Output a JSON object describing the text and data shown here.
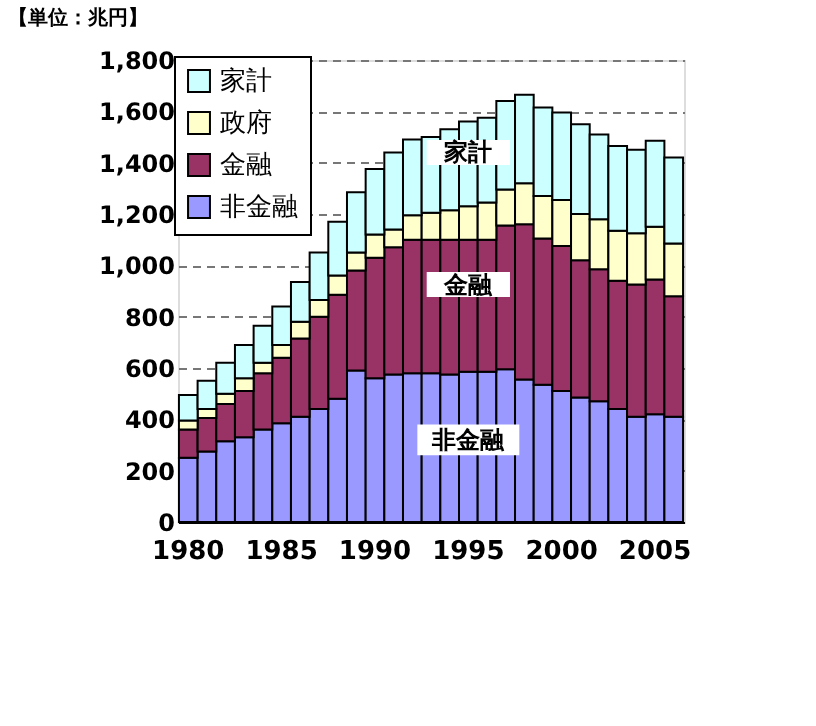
{
  "chart_data": {
    "type": "bar",
    "stacked": true,
    "title": "【単位：兆円】",
    "categories": [
      "1980",
      null,
      null,
      null,
      null,
      "1985",
      null,
      null,
      null,
      null,
      "1990",
      null,
      null,
      null,
      null,
      "1995",
      null,
      null,
      null,
      null,
      "2000",
      null,
      null,
      null,
      null,
      "2005",
      null
    ],
    "series": [
      {
        "name": "非金融",
        "color": "#9999ff",
        "values": [
          250,
          275,
          315,
          330,
          360,
          385,
          410,
          440,
          480,
          590,
          560,
          575,
          580,
          580,
          575,
          585,
          585,
          595,
          555,
          535,
          510,
          485,
          470,
          440,
          410,
          420,
          410
        ]
      },
      {
        "name": "金融",
        "color": "#993366",
        "values": [
          110,
          130,
          145,
          180,
          220,
          255,
          305,
          360,
          405,
          390,
          470,
          495,
          520,
          520,
          525,
          515,
          515,
          560,
          605,
          570,
          565,
          535,
          515,
          500,
          515,
          525,
          470
        ]
      },
      {
        "name": "政府",
        "color": "#ffffcc",
        "values": [
          35,
          35,
          40,
          50,
          40,
          50,
          65,
          65,
          75,
          70,
          90,
          70,
          95,
          105,
          115,
          130,
          145,
          140,
          160,
          165,
          180,
          180,
          195,
          195,
          200,
          205,
          205
        ]
      },
      {
        "name": "家計",
        "color": "#ccffff",
        "values": [
          100,
          110,
          120,
          130,
          145,
          150,
          155,
          185,
          210,
          235,
          255,
          300,
          295,
          295,
          315,
          330,
          330,
          345,
          345,
          345,
          340,
          350,
          330,
          330,
          325,
          335,
          335
        ]
      }
    ],
    "ylim": [
      0,
      1800
    ],
    "yticks": [
      {
        "value": 0,
        "label": "0"
      },
      {
        "value": 200,
        "label": "200"
      },
      {
        "value": 400,
        "label": "400"
      },
      {
        "value": 600,
        "label": "600"
      },
      {
        "value": 800,
        "label": "800"
      },
      {
        "value": 1000,
        "label": "1,000"
      },
      {
        "value": 1200,
        "label": "1,200"
      },
      {
        "value": 1400,
        "label": "1,400"
      },
      {
        "value": 1600,
        "label": "1,600"
      },
      {
        "value": 1800,
        "label": "1,800"
      }
    ],
    "grid": "y",
    "legend": "top left",
    "annotations": [
      {
        "text": "家計",
        "x": "1995",
        "y": 1440
      },
      {
        "text": "金融",
        "x": "1995",
        "y": 925
      },
      {
        "text": "非金融",
        "x": "1995",
        "y": 320
      }
    ]
  }
}
